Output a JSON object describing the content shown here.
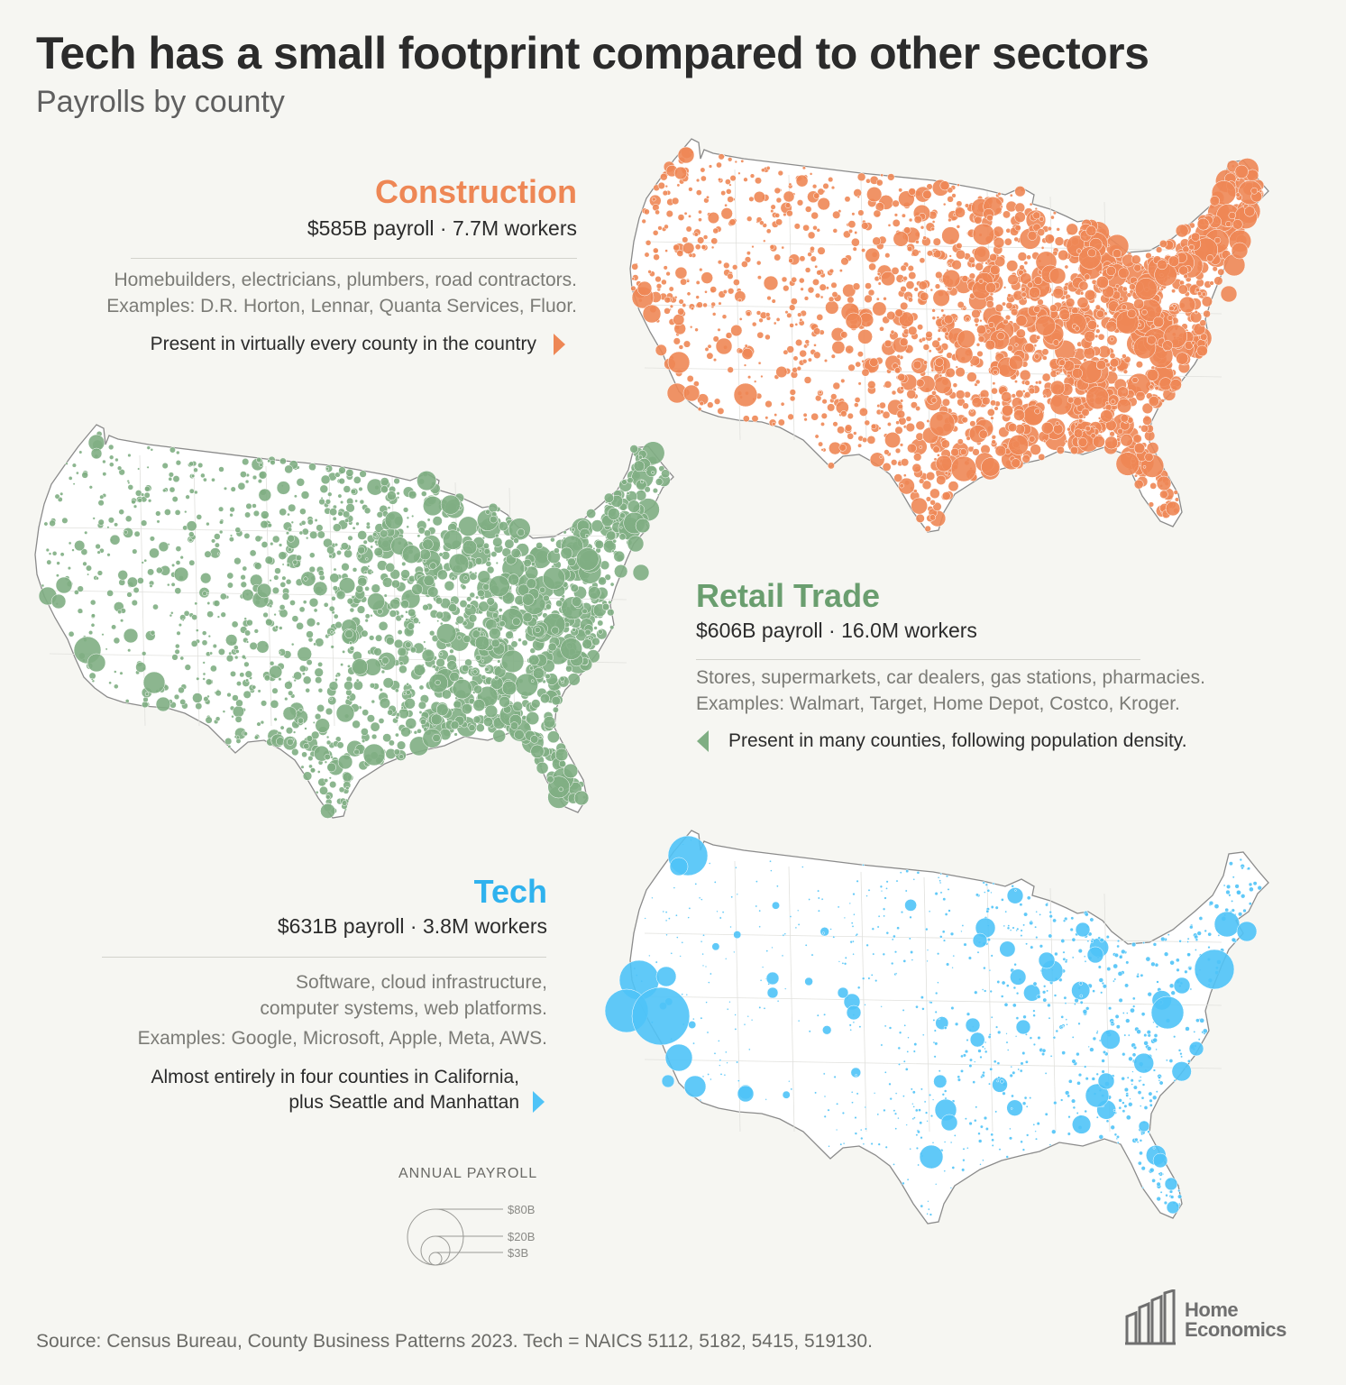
{
  "header": {
    "title": "Tech has a small footprint compared to other sectors",
    "subtitle": "Payrolls by county"
  },
  "colors": {
    "construction": "#ee8755",
    "retail": "#7fae83",
    "tech": "#4fc3f7",
    "map_fill": "#ffffff",
    "map_outline": "#8b8b8b"
  },
  "sectors": {
    "construction": {
      "name": "Construction",
      "stats": "$585B payroll · 7.7M workers",
      "description_1": "Homebuilders, electricians, plumbers, road contractors.",
      "description_2": "Examples: D.R. Horton, Lennar, Quanta Services, Fluor.",
      "note": "Present in virtually every county in the country"
    },
    "retail": {
      "name": "Retail Trade",
      "stats": "$606B payroll · 16.0M workers",
      "description_1": "Stores, supermarkets, car dealers, gas stations, pharmacies.",
      "description_2": "Examples: Walmart, Target, Home Depot, Costco, Kroger.",
      "note": "Present in many counties, following population density."
    },
    "tech": {
      "name": "Tech",
      "stats": "$631B payroll · 3.8M workers",
      "description_1": "Software, cloud infrastructure,",
      "description_2": "computer systems, web platforms.",
      "description_3": "Examples: Google, Microsoft, Apple, Meta, AWS.",
      "note_1": "Almost entirely in four counties in California,",
      "note_2": "plus Seattle and Manhattan"
    }
  },
  "legend": {
    "title": "ANNUAL PAYROLL",
    "items": [
      {
        "label": "$80B",
        "value_billions": 80
      },
      {
        "label": "$20B",
        "value_billions": 20
      },
      {
        "label": "$3B",
        "value_billions": 3
      }
    ]
  },
  "footer": {
    "source": "Source: Census Bureau, County Business Patterns 2023. Tech = NAICS 5112, 5182, 5415, 519130.",
    "logo_line_1": "Home",
    "logo_line_2": "Economics"
  }
}
